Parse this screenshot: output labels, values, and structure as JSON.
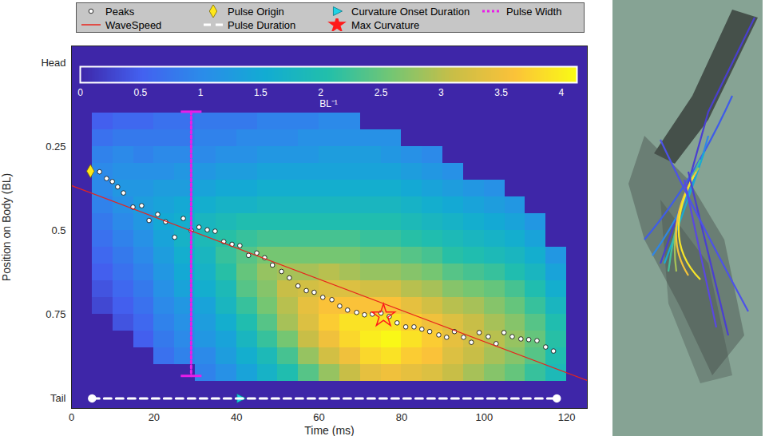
{
  "chart_data": {
    "type": "heatmap",
    "xlabel": "Time (ms)",
    "ylabel": "Position on Body (BL)",
    "xlim": [
      0,
      125
    ],
    "xticks": [
      0,
      20,
      40,
      60,
      80,
      100,
      120
    ],
    "ylim": [
      1.03,
      -0.05
    ],
    "yticks": [
      {
        "value": 0,
        "label": "Head"
      },
      0.25,
      0.5,
      0.75,
      {
        "value": 1,
        "label": "Tail"
      }
    ],
    "legend": "top",
    "colorbar": {
      "label": "BL⁻¹",
      "range": [
        0,
        4.13
      ],
      "ticks": [
        0,
        0.5,
        1,
        1.5,
        2,
        2.5,
        3,
        3.5,
        4
      ],
      "colors": [
        "#3e26a8",
        "#4361f0",
        "#2a8de9",
        "#12acd2",
        "#22bfaa",
        "#72c674",
        "#c8be47",
        "#fbc239",
        "#f9fb15"
      ]
    },
    "heatmap": {
      "x_bins": [
        0,
        5,
        10,
        15,
        20,
        25,
        30,
        35,
        40,
        45,
        50,
        55,
        60,
        65,
        70,
        75,
        80,
        85,
        90,
        95,
        100,
        105,
        110,
        115,
        120,
        125
      ],
      "y_bins": [
        0,
        0.05,
        0.1,
        0.15,
        0.2,
        0.25,
        0.3,
        0.35,
        0.4,
        0.45,
        0.5,
        0.55,
        0.6,
        0.65,
        0.7,
        0.75,
        0.8,
        0.85,
        0.9,
        0.95,
        1
      ],
      "values": [
        [
          0,
          0,
          0,
          0,
          0,
          0,
          0,
          0,
          0,
          0,
          0,
          0,
          0,
          0,
          0,
          0,
          0,
          0,
          0,
          0
        ],
        [
          0,
          0,
          0,
          0.5,
          0.7,
          0.9,
          1.0,
          1.0,
          0.9,
          0.8,
          0.7,
          0.6,
          0.5,
          0.4,
          0.3,
          0,
          0,
          0,
          0,
          0
        ],
        [
          0,
          0,
          0,
          0.6,
          0.8,
          1.0,
          1.1,
          1.2,
          1.1,
          1.0,
          0.9,
          0.8,
          0.7,
          0.6,
          0.5,
          0.4,
          0,
          0,
          0,
          0
        ],
        [
          0,
          0,
          0,
          0.6,
          0.8,
          0.9,
          1.1,
          1.2,
          1.3,
          1.2,
          1.1,
          1.0,
          0.9,
          0.8,
          0.7,
          0.6,
          0.5,
          0,
          0,
          0
        ],
        [
          0,
          0,
          0,
          0.7,
          0.8,
          1.0,
          1.1,
          1.3,
          1.4,
          1.5,
          1.4,
          1.3,
          1.2,
          1.1,
          1.0,
          0.9,
          0.8,
          0.7,
          0,
          0
        ],
        [
          0,
          0,
          0,
          0.7,
          0.8,
          1.0,
          1.2,
          1.3,
          1.5,
          1.6,
          1.7,
          1.6,
          1.5,
          1.4,
          1.2,
          1.1,
          1.0,
          0.9,
          0,
          0
        ],
        [
          0,
          0,
          0,
          0.8,
          0.9,
          1.0,
          1.2,
          1.4,
          1.6,
          1.8,
          1.9,
          1.8,
          1.7,
          1.6,
          1.4,
          1.3,
          1.2,
          1.0,
          0.9,
          0
        ],
        [
          0,
          0,
          0,
          0.8,
          0.9,
          1.1,
          1.3,
          1.5,
          1.7,
          1.9,
          2.1,
          2.2,
          2.1,
          1.9,
          1.8,
          1.6,
          1.4,
          1.3,
          1.1,
          0
        ],
        [
          0,
          0,
          0,
          0.8,
          1.0,
          1.1,
          1.3,
          1.5,
          1.7,
          2.0,
          2.2,
          2.4,
          2.5,
          2.4,
          2.2,
          2.0,
          1.8,
          1.6,
          1.4,
          0
        ],
        [
          0,
          0,
          0,
          0.9,
          1.0,
          1.2,
          1.4,
          1.6,
          1.8,
          2.0,
          2.3,
          2.6,
          2.8,
          2.7,
          2.6,
          2.4,
          2.2,
          1.9,
          1.7,
          0
        ],
        [
          0,
          0,
          0,
          0.9,
          1.0,
          1.2,
          1.4,
          1.6,
          1.8,
          2.0,
          2.3,
          2.6,
          2.9,
          3.1,
          3.0,
          2.9,
          2.6,
          2.3,
          2.0,
          0
        ],
        [
          0,
          0,
          0,
          0.9,
          1.1,
          1.2,
          1.4,
          1.6,
          1.8,
          2.0,
          2.3,
          2.6,
          2.9,
          3.2,
          3.4,
          3.3,
          3.1,
          2.8,
          2.4,
          0
        ],
        [
          0,
          0,
          0,
          1.0,
          1.1,
          1.3,
          1.4,
          1.6,
          1.8,
          2.0,
          2.3,
          2.6,
          3.0,
          3.3,
          3.6,
          3.7,
          3.5,
          3.2,
          2.8,
          0
        ],
        [
          0,
          0,
          0,
          1.0,
          1.1,
          1.3,
          1.4,
          1.6,
          1.8,
          2.0,
          2.3,
          2.6,
          2.9,
          3.3,
          3.6,
          3.9,
          3.8,
          3.5,
          3.1,
          0
        ],
        [
          0,
          0,
          0,
          0,
          1.1,
          1.3,
          1.4,
          1.6,
          1.8,
          2.0,
          2.2,
          2.5,
          2.8,
          3.2,
          3.6,
          3.9,
          4.0,
          3.8,
          3.4,
          0
        ],
        [
          0,
          0,
          0,
          0,
          1.1,
          1.2,
          1.4,
          1.6,
          1.8,
          2.0,
          2.2,
          2.5,
          2.8,
          3.2,
          3.6,
          3.9,
          4.1,
          3.9,
          3.5,
          0
        ],
        [
          0,
          0,
          0,
          0,
          0,
          1.1,
          1.3,
          1.5,
          1.7,
          1.9,
          2.1,
          2.4,
          2.7,
          3.0,
          3.4,
          3.7,
          3.9,
          3.7,
          3.4,
          0
        ],
        [
          0,
          0,
          0,
          0,
          0,
          1.0,
          1.2,
          1.4,
          1.6,
          1.8,
          2.0,
          2.3,
          2.6,
          2.9,
          3.2,
          3.5,
          3.7,
          3.6,
          3.3,
          0
        ],
        [
          0,
          0,
          0,
          0,
          0,
          0,
          1.1,
          1.3,
          1.5,
          1.7,
          1.9,
          2.1,
          2.4,
          2.7,
          3.0,
          3.3,
          3.4,
          3.3,
          3.1,
          0
        ],
        [
          0,
          0,
          0,
          0,
          0,
          0,
          0,
          1.2,
          1.4,
          1.6,
          1.8,
          2.0,
          2.3,
          2.6,
          2.9,
          3.1,
          3.2,
          3.1,
          2.9,
          0
        ],
        [
          0,
          0,
          0,
          0,
          0,
          0,
          0,
          1.1,
          1.3,
          1.5,
          1.7,
          1.9,
          2.2,
          2.5,
          2.7,
          2.9,
          3.0,
          2.9,
          2.7,
          0
        ],
        [
          0,
          0,
          0,
          0,
          0,
          0,
          0,
          0,
          1.2,
          1.4,
          1.6,
          1.8,
          2.0,
          2.3,
          2.5,
          2.7,
          2.8,
          2.7,
          2.5,
          0
        ],
        [
          0,
          0,
          0,
          0,
          0,
          0,
          0,
          0,
          0,
          1.2,
          1.4,
          1.6,
          1.8,
          2.0,
          2.2,
          2.4,
          2.5,
          2.4,
          2.2,
          0
        ],
        [
          0,
          0,
          0,
          0,
          0,
          0,
          0,
          0,
          0,
          0,
          0,
          1.2,
          1.4,
          1.6,
          1.8,
          2.0,
          2.1,
          2.0,
          1.9,
          0
        ],
        [
          0,
          0,
          0,
          0,
          0,
          0,
          0,
          0,
          0,
          0,
          0,
          0,
          0,
          0,
          0,
          0,
          0,
          0,
          0,
          0
        ]
      ]
    },
    "series": [
      {
        "name": "Peaks",
        "type": "scatter",
        "marker": "circle",
        "color": "#ffffff",
        "x": [
          6.8,
          8.5,
          9.9,
          11.2,
          12.6,
          14.9,
          17.0,
          18.8,
          20.9,
          22.8,
          25.0,
          27.1,
          29.0,
          30.9,
          32.9,
          34.8,
          36.9,
          38.9,
          40.8,
          42.9,
          44.9,
          46.8,
          48.7,
          50.9,
          52.8,
          54.9,
          56.9,
          58.8,
          60.9,
          63.1,
          65.0,
          66.9,
          69.1,
          71.0,
          72.9,
          75.0,
          77.0,
          78.9,
          81.0,
          83.0,
          84.9,
          86.8,
          89.0,
          90.9,
          92.8,
          95.0,
          96.9,
          98.8,
          101.0,
          102.9,
          104.8,
          106.8,
          108.9,
          110.8,
          112.8,
          114.9,
          116.8
        ],
        "y": [
          0.325,
          0.345,
          0.354,
          0.37,
          0.388,
          0.43,
          0.426,
          0.47,
          0.452,
          0.474,
          0.52,
          0.464,
          0.5,
          0.49,
          0.498,
          0.502,
          0.533,
          0.541,
          0.545,
          0.574,
          0.567,
          0.581,
          0.603,
          0.622,
          0.641,
          0.665,
          0.679,
          0.684,
          0.699,
          0.706,
          0.725,
          0.737,
          0.744,
          0.751,
          0.749,
          0.746,
          0.756,
          0.775,
          0.787,
          0.787,
          0.794,
          0.801,
          0.811,
          0.818,
          0.801,
          0.818,
          0.833,
          0.804,
          0.816,
          0.837,
          0.804,
          0.816,
          0.823,
          0.825,
          0.828,
          0.847,
          0.859
        ]
      },
      {
        "name": "Pulse Origin",
        "type": "scatter",
        "marker": "diamond",
        "color": "#ffe81a",
        "x": [
          4.6
        ],
        "y": [
          0.323
        ]
      },
      {
        "name": "Curvature Onset Duration",
        "type": "scatter",
        "marker": "triangle-right",
        "color": "#1fd3e6",
        "x": [
          41
        ],
        "y": [
          1
        ]
      },
      {
        "name": "Pulse Width",
        "type": "errorbar",
        "line_style": "dotted",
        "color": "#e81ee8",
        "x": [
          29,
          29
        ],
        "y": [
          0.146,
          0.933
        ]
      },
      {
        "name": "WaveSpeed",
        "type": "line",
        "line_style": "solid",
        "color": "#e8241c",
        "x": [
          0,
          125
        ],
        "y": [
          0.366,
          0.947
        ]
      },
      {
        "name": "Pulse Duration",
        "type": "line",
        "line_style": "dashed",
        "marker": "circle",
        "color": "#ffffff",
        "x": [
          5,
          117.6
        ],
        "y": [
          1,
          1
        ]
      },
      {
        "name": "Max Curvature",
        "type": "scatter",
        "marker": "star",
        "color": "#ff1a1a",
        "x": [
          75.6
        ],
        "y": [
          0.754
        ]
      }
    ]
  }
}
